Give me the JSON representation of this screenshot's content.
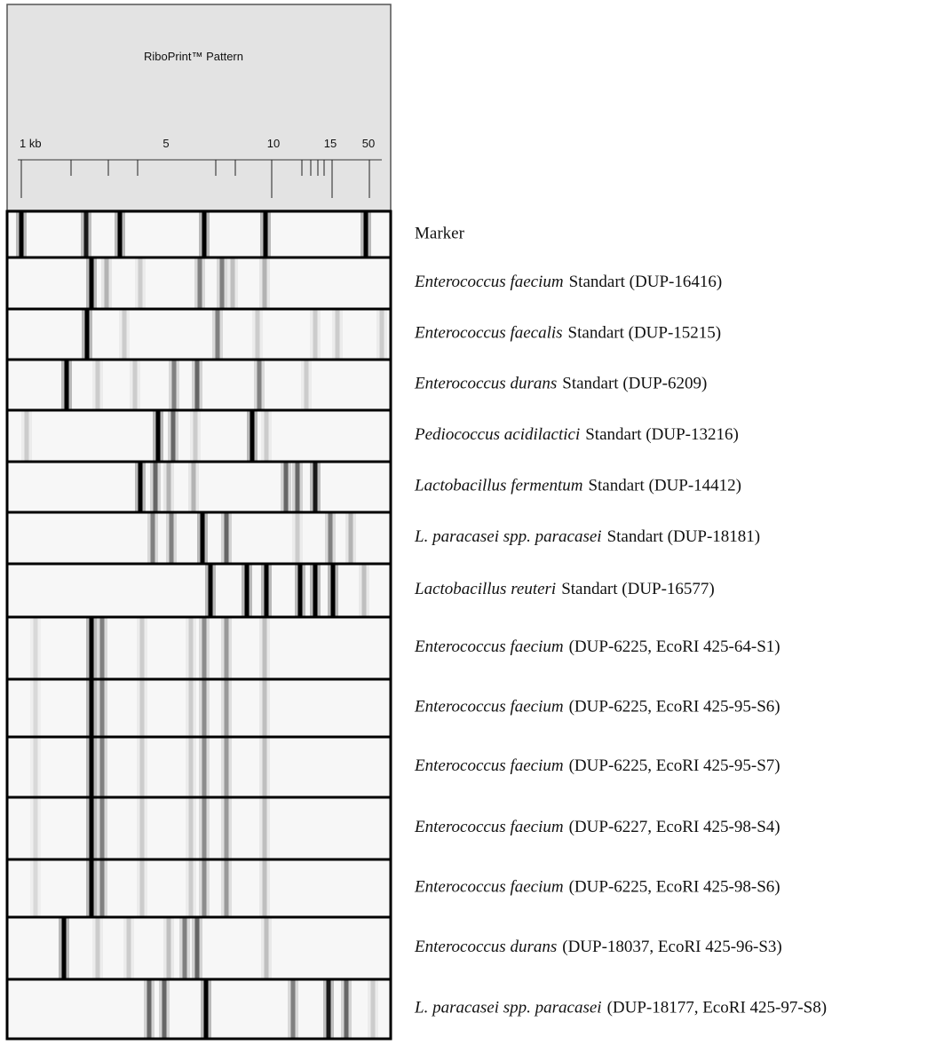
{
  "header": {
    "title": "RiboPrint™ Pattern",
    "scale_labels": [
      "1 kb",
      "5",
      "10",
      "15",
      "50"
    ]
  },
  "rows": [
    {
      "text": "Marker"
    },
    {
      "italic": "Enterococcus faecium",
      "text": "Standart (DUP-16416)"
    },
    {
      "italic": "Enterococcus faecalis",
      "text": "Standart (DUP-15215)"
    },
    {
      "italic": "Enterococcus durans",
      "text": "Standart (DUP-6209)"
    },
    {
      "italic": "Pediococcus acidilactici",
      "text": "Standart (DUP-13216)"
    },
    {
      "italic": "Lactobacillus fermentum",
      "text": "Standart (DUP-14412)"
    },
    {
      "italic": "L. paracasei spp. paracasei",
      "text": "Standart (DUP-18181)"
    },
    {
      "italic": "Lactobacillus reuteri",
      "text": "Standart (DUP-16577)"
    },
    {
      "italic": "Enterococcus faecium",
      "text": "(DUP-6225,  EcoRI 425-64-S1)"
    },
    {
      "italic": "Enterococcus faecium",
      "text": "(DUP-6225,  EcoRI 425-95-S6)"
    },
    {
      "italic": "Enterococcus faecium",
      "text": "(DUP-6225, EcoRI  425-95-S7)"
    },
    {
      "italic": "Enterococcus faecium",
      "text": "(DUP-6227, EcoRI  425-98-S4)"
    },
    {
      "italic": "Enterococcus faecium",
      "text": "(DUP-6225, EcoRI  425-98-S6)"
    },
    {
      "italic": "Enterococcus durans",
      "text": "(DUP-18037, EcoRI  425-96-S3)"
    },
    {
      "italic": "L. paracasei spp. paracasei",
      "text": "(DUP-18177, EcoRI 425-97-S8)"
    }
  ]
}
